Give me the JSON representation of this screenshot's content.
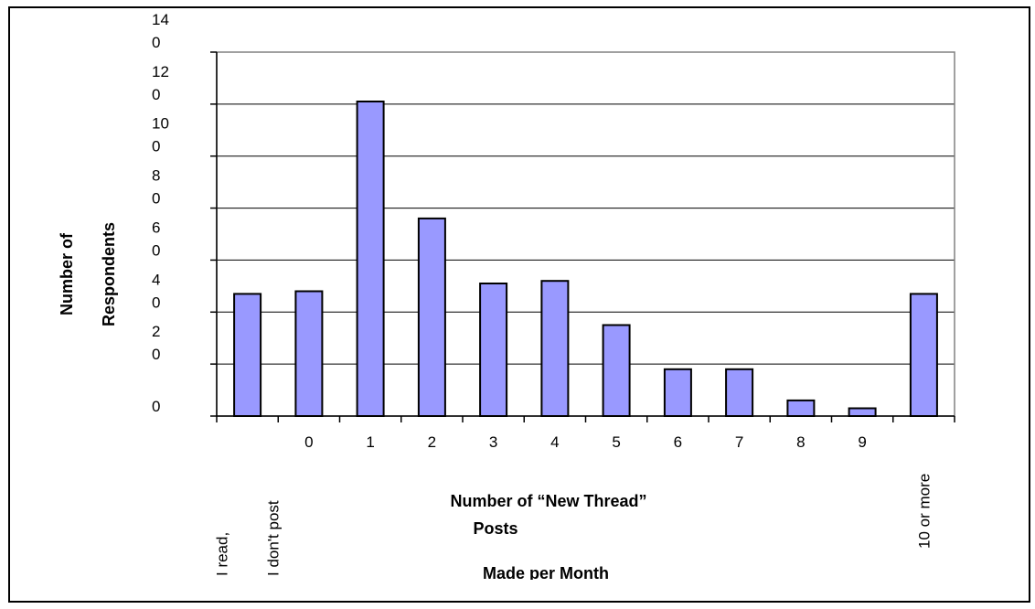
{
  "chart_data": {
    "type": "bar",
    "categories": [
      "I read, I don't post",
      "0",
      "1",
      "2",
      "3",
      "4",
      "5",
      "6",
      "7",
      "8",
      "9",
      "10 or more"
    ],
    "category_label_lines": [
      [
        "I read,",
        "I don't post"
      ],
      [
        "0"
      ],
      [
        "1"
      ],
      [
        "2"
      ],
      [
        "3"
      ],
      [
        "4"
      ],
      [
        "5"
      ],
      [
        "6"
      ],
      [
        "7"
      ],
      [
        "8"
      ],
      [
        "9"
      ],
      [
        "10 or more"
      ]
    ],
    "values": [
      47,
      48,
      121,
      76,
      51,
      52,
      35,
      18,
      18,
      6,
      3,
      47
    ],
    "ylim": [
      0,
      140
    ],
    "yticks": [
      0,
      20,
      40,
      60,
      80,
      100,
      120,
      140
    ],
    "ytick_label_lines": [
      [
        "0"
      ],
      [
        "2",
        "0"
      ],
      [
        "4",
        "0"
      ],
      [
        "6",
        "0"
      ],
      [
        "8",
        "0"
      ],
      [
        "10",
        "0"
      ],
      [
        "12",
        "0"
      ],
      [
        "14",
        "0"
      ]
    ],
    "ylabel_lines": [
      "Number of",
      "Respondents"
    ],
    "xlabel_lines": [
      "Number of “New Thread”",
      "Posts",
      "Made per Month"
    ],
    "grid": true,
    "bar_color": "#9999ff"
  }
}
